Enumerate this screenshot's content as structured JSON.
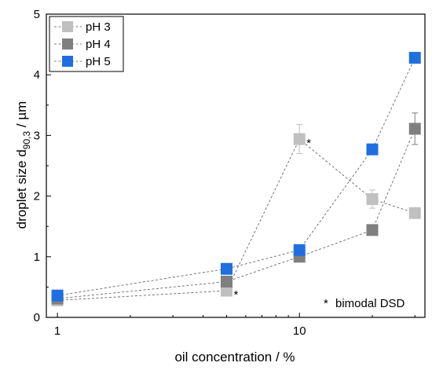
{
  "chart_data": {
    "type": "scatter",
    "xscale": "log",
    "xlim": [
      0.9,
      33
    ],
    "ylim": [
      0,
      5
    ],
    "xticks": [
      1,
      10
    ],
    "xticklabels": [
      "1",
      "10"
    ],
    "yticks": [
      0,
      1,
      2,
      3,
      4,
      5
    ],
    "yticklabels": [
      "0",
      "1",
      "2",
      "3",
      "4",
      "5"
    ],
    "xlabel": "oil concentration / %",
    "ylabel_main": "droplet size d",
    "ylabel_sub": "90,3",
    "ylabel_tail": " / µm",
    "x": [
      1,
      5,
      10,
      20,
      30
    ],
    "series": [
      {
        "name": "pH 3",
        "color": "#c0c0c0",
        "values": [
          0.28,
          0.44,
          2.94,
          1.95,
          1.72
        ],
        "errors": [
          0.03,
          0.03,
          0.24,
          0.15,
          0.05
        ]
      },
      {
        "name": "pH 4",
        "color": "#7f7f7f",
        "values": [
          0.31,
          0.59,
          1.0,
          1.44,
          3.11
        ],
        "errors": [
          0.03,
          0.04,
          0.06,
          0.05,
          0.26
        ]
      },
      {
        "name": "pH 5",
        "color": "#1f6fdf",
        "values": [
          0.36,
          0.8,
          1.11,
          2.77,
          4.28
        ],
        "errors": [
          0.03,
          0.03,
          0.04,
          0.05,
          0.05
        ]
      }
    ],
    "star_marks": [
      {
        "x": 5,
        "y": 0.44,
        "text": "*"
      },
      {
        "x": 10,
        "y": 2.94,
        "text": "*"
      }
    ],
    "annotation": "bimodal DSD",
    "annotation_star": "*",
    "legend": {
      "placement": "top-left"
    },
    "grid": false
  }
}
